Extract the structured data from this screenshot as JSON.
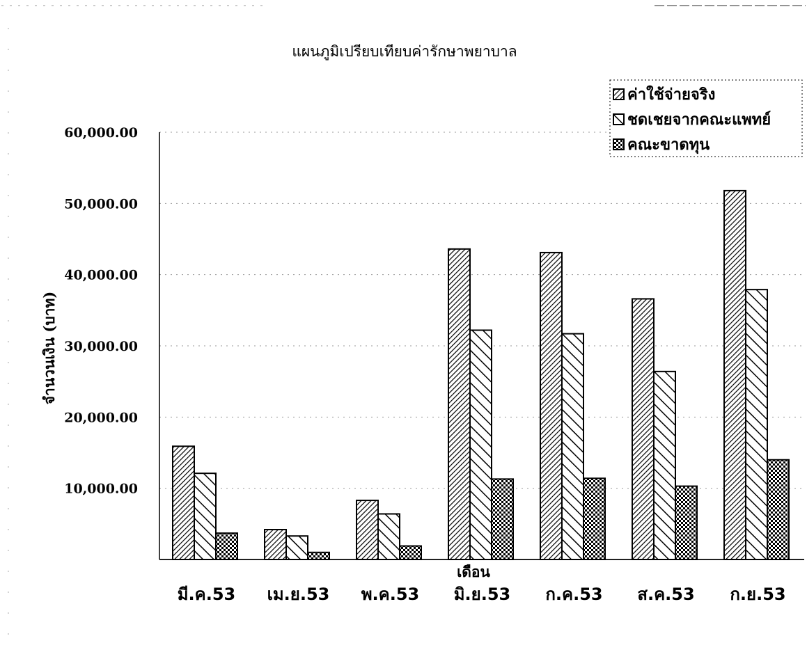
{
  "chart_data": {
    "type": "bar",
    "title": "แผนภูมิเปรียบเทียบค่ารักษาพยาบาล",
    "xlabel": "เดือน",
    "ylabel": "จำนวนเงิน (บาท)",
    "categories": [
      "มี.ค.53",
      "เม.ย.53",
      "พ.ค.53",
      "มิ.ย.53",
      "ก.ค.53",
      "ส.ค.53",
      "ก.ย.53"
    ],
    "series": [
      {
        "name": "ค่าใช้จ่ายจริง",
        "values": [
          15900,
          4200,
          8300,
          43600,
          43100,
          36600,
          51800
        ]
      },
      {
        "name": "ชดเชยจากคณะแพทย์",
        "values": [
          12100,
          3300,
          6400,
          32200,
          31700,
          26400,
          37900
        ]
      },
      {
        "name": "คณะขาดทุน",
        "values": [
          3700,
          1000,
          1900,
          11300,
          11400,
          10300,
          14000
        ]
      }
    ],
    "ylim": [
      0,
      60000
    ],
    "yticks": [
      "60,000.00",
      "50,000.00",
      "40,000.00",
      "30,000.00",
      "20,000.00",
      "10,000.00"
    ],
    "grid": true,
    "legend_position": "top-right"
  }
}
